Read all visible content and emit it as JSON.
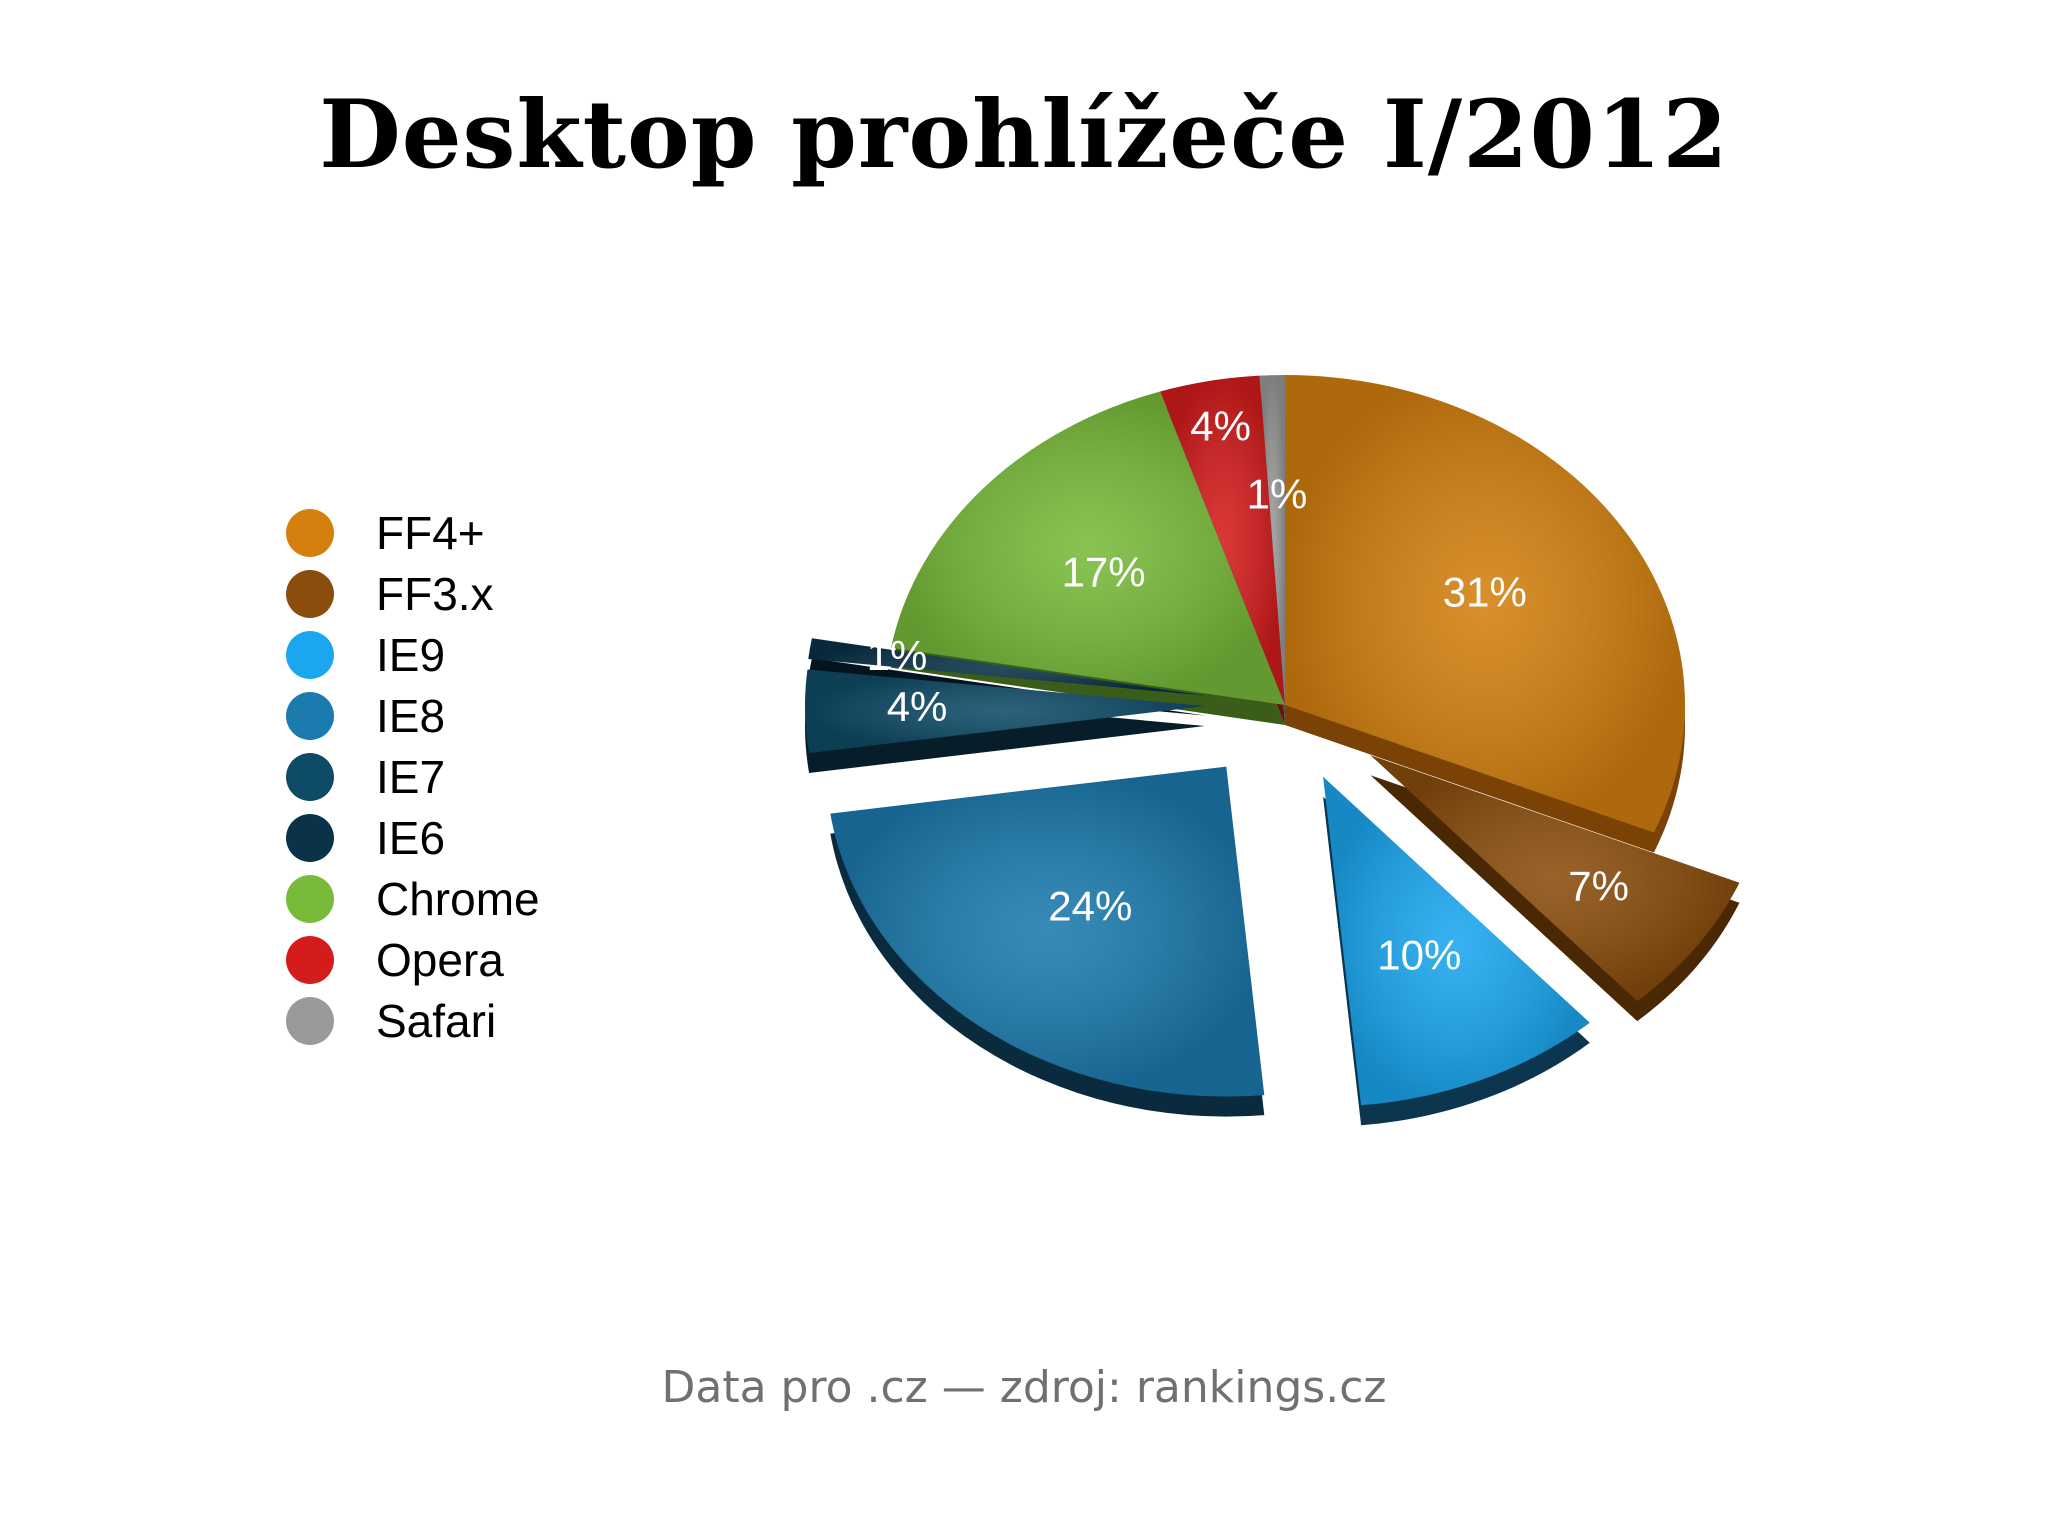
{
  "title": "Desktop prohlížeče I/2012",
  "source_note": "Data pro .cz — zdroj: rankings.cz",
  "chart_data": {
    "type": "pie",
    "title": "Desktop prohlížeče I/2012",
    "legend_position": "left",
    "slices": [
      {
        "name": "FF4+",
        "value": 31,
        "label": "31%",
        "color": "#d3800f",
        "side": "#7a4204"
      },
      {
        "name": "FF3.x",
        "value": 7,
        "label": "7%",
        "color": "#8a4d0c",
        "side": "#4a2804"
      },
      {
        "name": "IE9",
        "value": 10,
        "label": "10%",
        "color": "#1ba7f0",
        "side": "#0c3650"
      },
      {
        "name": "IE8",
        "value": 24,
        "label": "24%",
        "color": "#1b7aae",
        "side": "#0a2a3e"
      },
      {
        "name": "IE7",
        "value": 4,
        "label": "4%",
        "color": "#0e4b66",
        "side": "#071e2a"
      },
      {
        "name": "IE6",
        "value": 1,
        "label": "1%",
        "color": "#0a3248",
        "side": "#04141e"
      },
      {
        "name": "Chrome",
        "value": 17,
        "label": "17%",
        "color": "#78bb3a",
        "side": "#3a5e1a"
      },
      {
        "name": "Opera",
        "value": 4,
        "label": "4%",
        "color": "#d41c1c",
        "side": "#6a0e0e"
      },
      {
        "name": "Safari",
        "value": 1,
        "label": "1%",
        "color": "#9a9a9a",
        "side": "#555555"
      }
    ]
  }
}
